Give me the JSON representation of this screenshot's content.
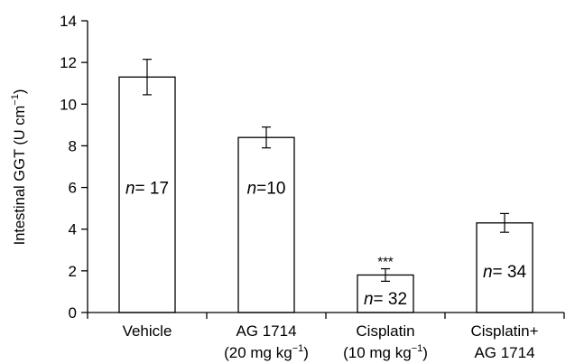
{
  "chart_data": {
    "type": "bar",
    "ylabel_main": "Intestinal GGT (U cm",
    "ylabel_sup": "−1",
    "ylabel_end": ")",
    "ylim": [
      0,
      14
    ],
    "yticks": [
      0,
      2,
      4,
      6,
      8,
      10,
      12,
      14
    ],
    "categories": [
      {
        "line1": "Vehicle",
        "line2": ""
      },
      {
        "line1": "AG 1714",
        "line2": "(20 mg kg",
        "line2_sup": "−1",
        "line2_end": ")"
      },
      {
        "line1": "Cisplatin",
        "line2": "(10 mg kg",
        "line2_sup": "−1",
        "line2_end": ")"
      },
      {
        "line1": "Cisplatin+",
        "line2": "AG 1714"
      }
    ],
    "values": [
      11.3,
      8.4,
      1.8,
      4.3
    ],
    "errors": [
      0.85,
      0.5,
      0.3,
      0.45
    ],
    "n_labels": [
      {
        "n": "n",
        "eq": "= 17",
        "y": 6.0
      },
      {
        "n": "n",
        "eq": "=10",
        "y": 6.0
      },
      {
        "n": "n",
        "eq": "= 32",
        "y": 0.7
      },
      {
        "n": "n",
        "eq": "= 34",
        "y": 2.0
      }
    ],
    "significance": [
      "",
      "",
      "***",
      ""
    ]
  }
}
